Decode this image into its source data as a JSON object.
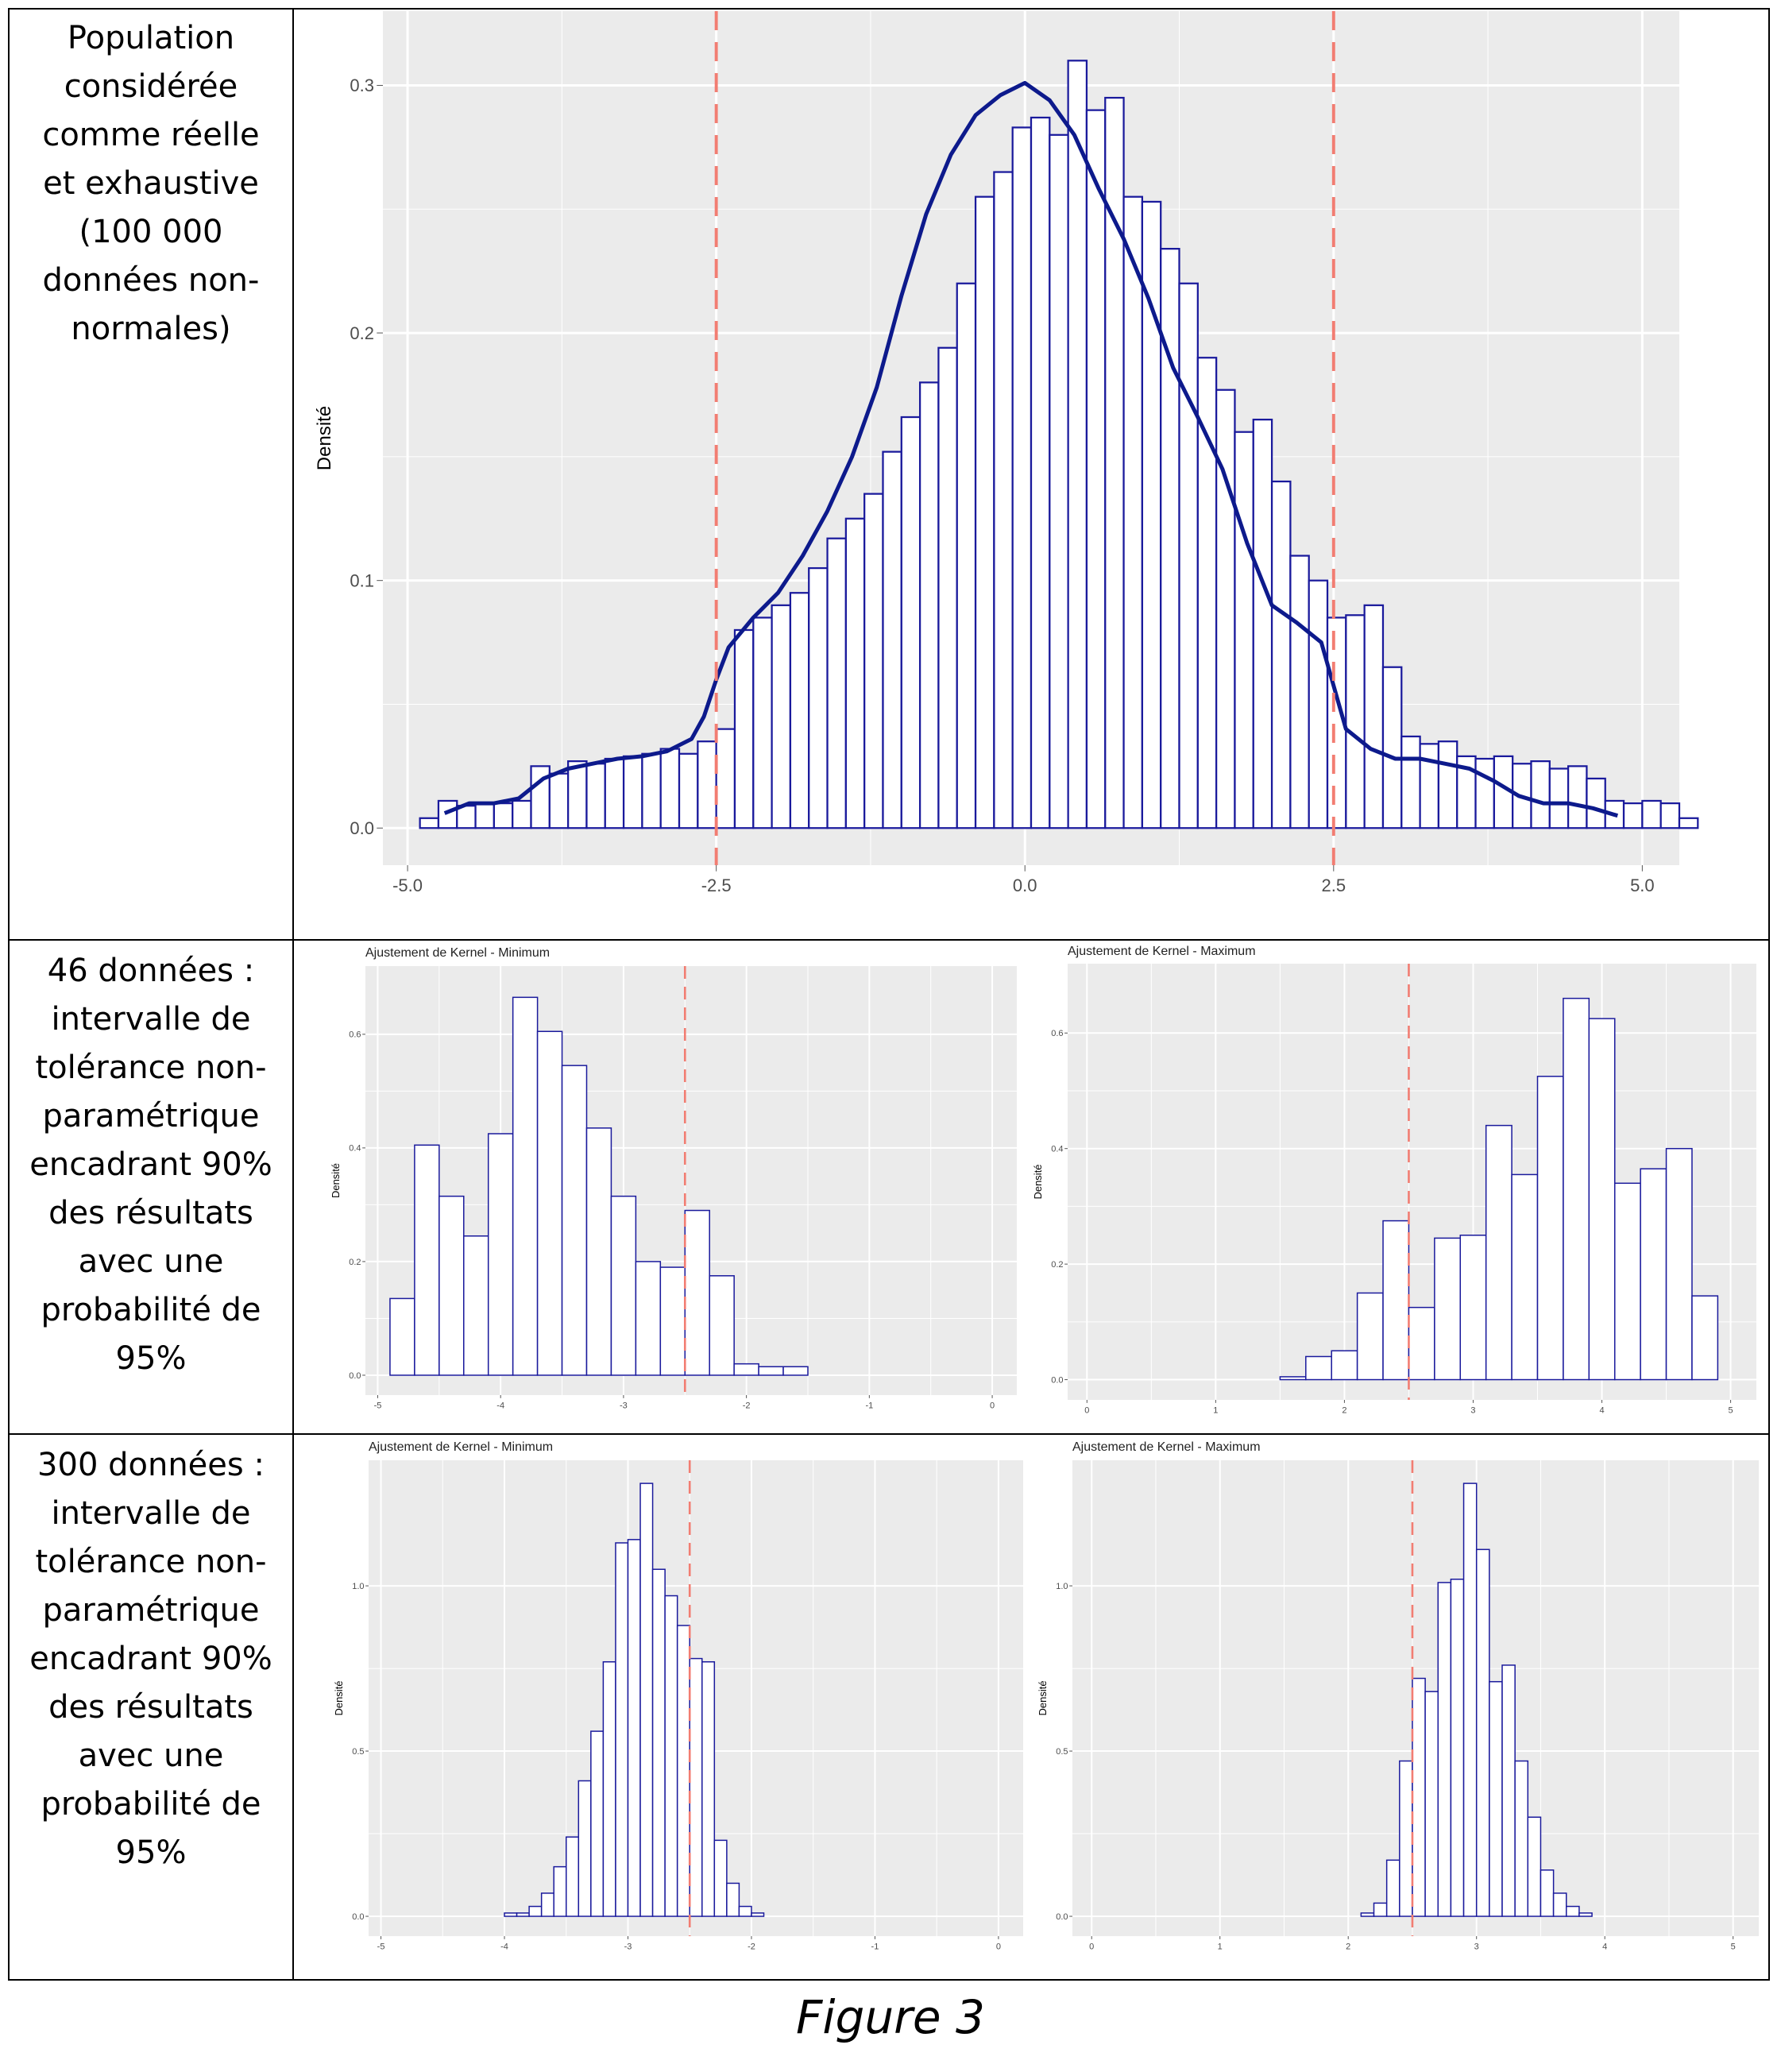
{
  "figure_caption": "Figure 3",
  "rows": [
    {
      "label_lines": [
        "Population",
        "considérée",
        "comme réelle",
        "et exhaustive",
        "(100 000",
        "données non-",
        "normales)"
      ]
    },
    {
      "label_lines": [
        "46 données :",
        "intervalle de",
        "tolérance non-",
        "paramétrique",
        "encadrant 90%",
        "des résultats",
        "avec une",
        "probabilité de",
        "95%"
      ]
    },
    {
      "label_lines": [
        "300 données :",
        "intervalle de",
        "tolérance non-",
        "paramétrique",
        "encadrant 90%",
        "des résultats",
        "avec une",
        "probabilité de",
        "95%"
      ]
    }
  ],
  "colors": {
    "bar_outline": "#1a1a9c",
    "bar_fill": "#ffffff",
    "density": "#0d1a8c",
    "vline": "#f27d72",
    "panel_bg": "#ebebeb",
    "grid": "#ffffff"
  },
  "chart_data": [
    {
      "id": "population",
      "type": "histogram",
      "title": "",
      "xlabel": "",
      "ylabel": "Densité",
      "xlim": [
        -5.2,
        5.3
      ],
      "ylim": [
        -0.015,
        0.33
      ],
      "xticks": [
        -5.0,
        -2.5,
        0.0,
        2.5,
        5.0
      ],
      "xtick_labels": [
        "-5.0",
        "-2.5",
        "0.0",
        "2.5",
        "5.0"
      ],
      "yticks": [
        0.0,
        0.1,
        0.2,
        0.3
      ],
      "ytick_labels": [
        "0.0",
        "0.1",
        "0.2",
        "0.3"
      ],
      "bin_start": -4.9,
      "bin_width": 0.15,
      "values": [
        0.004,
        0.011,
        0.009,
        0.01,
        0.01,
        0.011,
        0.025,
        0.022,
        0.027,
        0.026,
        0.028,
        0.029,
        0.03,
        0.032,
        0.03,
        0.035,
        0.04,
        0.08,
        0.085,
        0.09,
        0.095,
        0.105,
        0.117,
        0.125,
        0.135,
        0.152,
        0.166,
        0.18,
        0.194,
        0.22,
        0.255,
        0.265,
        0.283,
        0.287,
        0.28,
        0.31,
        0.29,
        0.295,
        0.255,
        0.253,
        0.234,
        0.22,
        0.19,
        0.177,
        0.16,
        0.165,
        0.14,
        0.11,
        0.1,
        0.085,
        0.086,
        0.09,
        0.065,
        0.037,
        0.034,
        0.035,
        0.029,
        0.028,
        0.029,
        0.026,
        0.027,
        0.024,
        0.025,
        0.02,
        0.011,
        0.01,
        0.011,
        0.01,
        0.004
      ],
      "density_curve": {
        "x": [
          -4.7,
          -4.5,
          -4.3,
          -4.1,
          -3.9,
          -3.7,
          -3.5,
          -3.3,
          -3.1,
          -2.9,
          -2.7,
          -2.6,
          -2.5,
          -2.4,
          -2.2,
          -2.0,
          -1.8,
          -1.6,
          -1.4,
          -1.2,
          -1.0,
          -0.8,
          -0.6,
          -0.4,
          -0.2,
          0.0,
          0.2,
          0.4,
          0.6,
          0.8,
          1.0,
          1.2,
          1.4,
          1.6,
          1.8,
          2.0,
          2.2,
          2.4,
          2.6,
          2.8,
          3.0,
          3.2,
          3.4,
          3.6,
          3.8,
          4.0,
          4.2,
          4.4,
          4.6,
          4.8
        ],
        "y": [
          0.006,
          0.01,
          0.01,
          0.012,
          0.02,
          0.024,
          0.026,
          0.028,
          0.029,
          0.031,
          0.036,
          0.045,
          0.06,
          0.073,
          0.085,
          0.095,
          0.11,
          0.128,
          0.15,
          0.178,
          0.215,
          0.248,
          0.272,
          0.288,
          0.296,
          0.301,
          0.294,
          0.28,
          0.258,
          0.238,
          0.214,
          0.186,
          0.166,
          0.145,
          0.115,
          0.09,
          0.083,
          0.075,
          0.04,
          0.032,
          0.028,
          0.028,
          0.026,
          0.024,
          0.019,
          0.013,
          0.01,
          0.01,
          0.008,
          0.005
        ]
      },
      "vlines": [
        -2.5,
        2.5
      ]
    },
    {
      "id": "n46-min",
      "type": "histogram",
      "title": "Ajustement de Kernel - Minimum",
      "ylabel": "Densité",
      "xlim": [
        -5.1,
        0.2
      ],
      "ylim": [
        -0.035,
        0.72
      ],
      "xticks": [
        -5,
        -4,
        -3,
        -2,
        -1,
        0
      ],
      "xtick_labels": [
        "-5",
        "-4",
        "-3",
        "-2",
        "-1",
        "0"
      ],
      "yticks": [
        0.0,
        0.2,
        0.4,
        0.6
      ],
      "ytick_labels": [
        "0.0",
        "0.2",
        "0.4",
        "0.6"
      ],
      "bin_start": -4.9,
      "bin_width": 0.2,
      "values": [
        0.135,
        0.405,
        0.315,
        0.245,
        0.425,
        0.665,
        0.605,
        0.545,
        0.435,
        0.315,
        0.2,
        0.19,
        0.29,
        0.175,
        0.02,
        0.015,
        0.015
      ],
      "vlines": [
        -2.5
      ]
    },
    {
      "id": "n46-max",
      "type": "histogram",
      "title": "Ajustement de Kernel - Maximum",
      "ylabel": "Densité",
      "xlim": [
        -0.15,
        5.2
      ],
      "ylim": [
        -0.035,
        0.72
      ],
      "xticks": [
        0,
        1,
        2,
        3,
        4,
        5
      ],
      "xtick_labels": [
        "0",
        "1",
        "2",
        "3",
        "4",
        "5"
      ],
      "yticks": [
        0.0,
        0.2,
        0.4,
        0.6
      ],
      "ytick_labels": [
        "0.0",
        "0.2",
        "0.4",
        "0.6"
      ],
      "bin_start": 1.5,
      "bin_width": 0.2,
      "values": [
        0.005,
        0.04,
        0.05,
        0.15,
        0.275,
        0.125,
        0.245,
        0.25,
        0.44,
        0.355,
        0.525,
        0.66,
        0.625,
        0.34,
        0.365,
        0.4,
        0.145
      ],
      "vlines": [
        2.5
      ]
    },
    {
      "id": "n300-min",
      "type": "histogram",
      "title": "Ajustement de Kernel - Minimum",
      "ylabel": "Densité",
      "xlim": [
        -5.1,
        0.2
      ],
      "ylim": [
        -0.06,
        1.38
      ],
      "xticks": [
        -5,
        -4,
        -3,
        -2,
        -1,
        0
      ],
      "xtick_labels": [
        "-5",
        "-4",
        "-3",
        "-2",
        "-1",
        "0"
      ],
      "yticks": [
        0.0,
        0.5,
        1.0
      ],
      "ytick_labels": [
        "0.0",
        "0.5",
        "1.0"
      ],
      "bin_start": -4.0,
      "bin_width": 0.1,
      "values": [
        0.01,
        0.01,
        0.03,
        0.07,
        0.15,
        0.24,
        0.41,
        0.56,
        0.77,
        1.13,
        1.14,
        1.31,
        1.05,
        0.97,
        0.88,
        0.78,
        0.77,
        0.23,
        0.1,
        0.03,
        0.01
      ],
      "vlines": [
        -2.5
      ]
    },
    {
      "id": "n300-max",
      "type": "histogram",
      "title": "Ajustement de Kernel - Maximum",
      "ylabel": "Densité",
      "xlim": [
        -0.15,
        5.2
      ],
      "ylim": [
        -0.06,
        1.38
      ],
      "xticks": [
        0,
        1,
        2,
        3,
        4,
        5
      ],
      "xtick_labels": [
        "0",
        "1",
        "2",
        "3",
        "4",
        "5"
      ],
      "yticks": [
        0.0,
        0.5,
        1.0
      ],
      "ytick_labels": [
        "0.0",
        "0.5",
        "1.0"
      ],
      "bin_start": 2.1,
      "bin_width": 0.1,
      "values": [
        0.01,
        0.04,
        0.17,
        0.47,
        0.72,
        0.68,
        1.01,
        1.02,
        1.31,
        1.11,
        0.71,
        0.76,
        0.47,
        0.3,
        0.14,
        0.07,
        0.03,
        0.01
      ],
      "vlines": [
        2.5
      ]
    }
  ]
}
